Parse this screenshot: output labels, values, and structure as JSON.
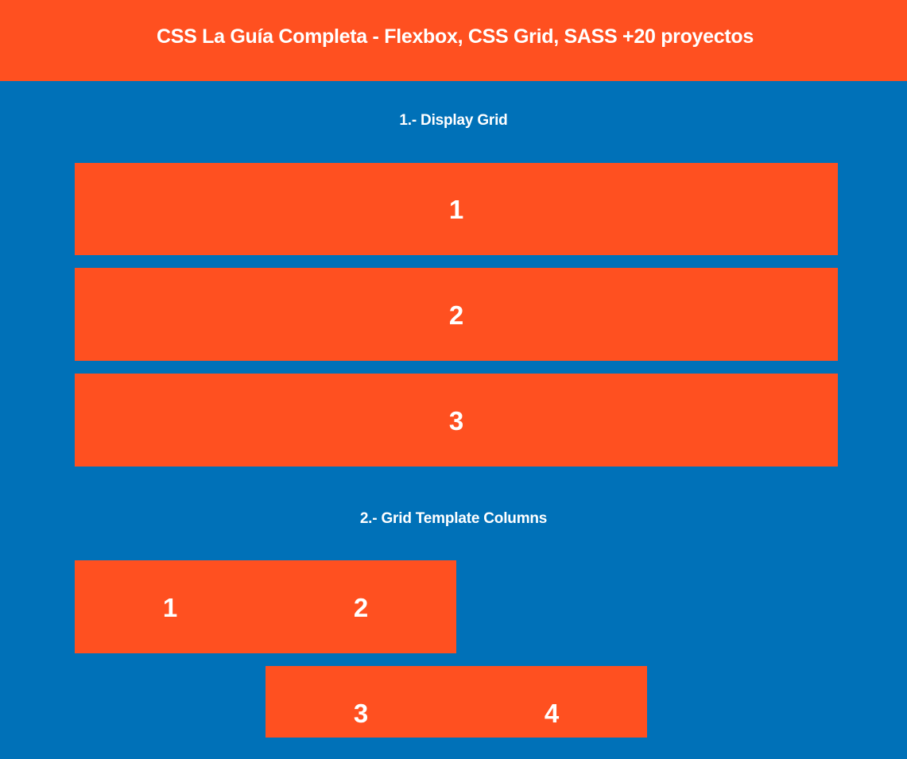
{
  "header": {
    "title": "CSS La Guía Completa - Flexbox, CSS Grid, SASS +20 proyectos"
  },
  "section1": {
    "title": "1.- Display Grid",
    "items": [
      "1",
      "2",
      "3"
    ]
  },
  "section2": {
    "title": "2.- Grid Template Columns",
    "items": [
      "1",
      "2",
      "3",
      "4"
    ]
  },
  "colors": {
    "background": "#0071B8",
    "accent": "#FF5020",
    "text": "#FFFFFF"
  }
}
